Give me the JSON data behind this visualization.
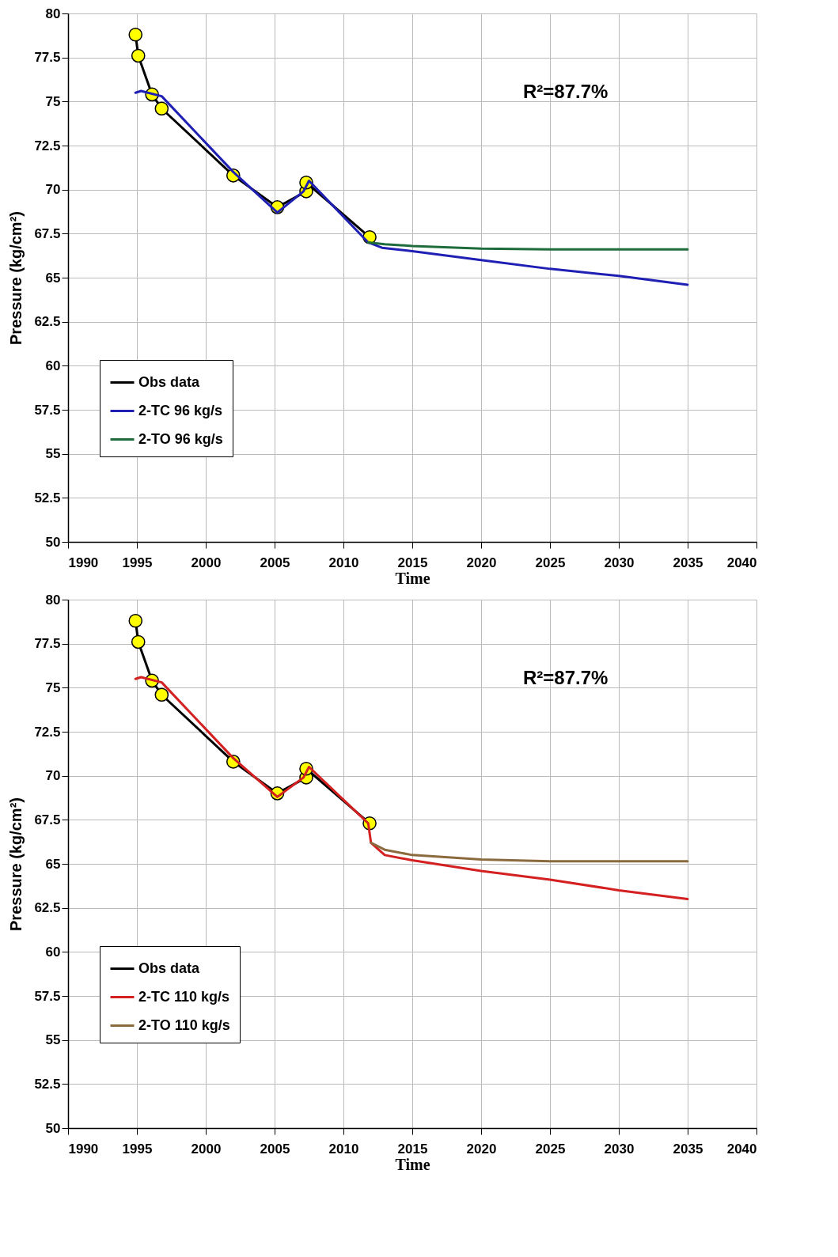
{
  "chart_data": [
    {
      "type": "line",
      "xlabel": "Time",
      "ylabel": "Pressure (kg/cm²)",
      "annotations": [
        "R²=87.7%"
      ],
      "xlim": [
        1990,
        2040
      ],
      "xticks": [
        1990,
        1995,
        2000,
        2005,
        2010,
        2015,
        2020,
        2025,
        2030,
        2035,
        2040
      ],
      "ylim": [
        50,
        80
      ],
      "yticks": [
        50,
        52.5,
        55,
        57.5,
        60,
        62.5,
        65,
        67.5,
        70,
        72.5,
        75,
        77.5,
        80
      ],
      "grid": true,
      "legend": "bottom left",
      "series": [
        {
          "name": "Obs data",
          "color": "#000000",
          "marker": "circle",
          "x": [
            1994.9,
            1995.1,
            1996.1,
            1996.8,
            2002.0,
            2005.2,
            2007.3,
            2007.3,
            2011.9
          ],
          "values": [
            78.8,
            77.6,
            75.4,
            74.6,
            70.8,
            69.0,
            69.9,
            70.4,
            67.3
          ]
        },
        {
          "name": "2-TC 96 kg/s",
          "color": "#1f1fb4",
          "x": [
            1994.9,
            1995.3,
            1996.8,
            2002.0,
            2005.2,
            2007.1,
            2007.5,
            2011.8,
            2012.8,
            2015,
            2020,
            2025,
            2030,
            2035
          ],
          "values": [
            75.5,
            75.6,
            75.3,
            71.0,
            68.7,
            69.9,
            70.5,
            67.0,
            66.7,
            66.5,
            66.0,
            65.5,
            65.1,
            64.6
          ]
        },
        {
          "name": "2-TO 96 kg/s",
          "color": "#1e6b3c",
          "x": [
            2011.8,
            2013,
            2015,
            2020,
            2025,
            2030,
            2035
          ],
          "values": [
            67.0,
            66.9,
            66.8,
            66.65,
            66.6,
            66.6,
            66.6
          ]
        }
      ]
    },
    {
      "type": "line",
      "xlabel": "Time",
      "ylabel": "Pressure (kg/cm²)",
      "annotations": [
        "R²=87.7%"
      ],
      "xlim": [
        1990,
        2040
      ],
      "xticks": [
        1990,
        1995,
        2000,
        2005,
        2010,
        2015,
        2020,
        2025,
        2030,
        2035,
        2040
      ],
      "ylim": [
        50,
        80
      ],
      "yticks": [
        50,
        52.5,
        55,
        57.5,
        60,
        62.5,
        65,
        67.5,
        70,
        72.5,
        75,
        77.5,
        80
      ],
      "grid": true,
      "legend": "bottom left",
      "series": [
        {
          "name": "Obs data",
          "color": "#000000",
          "marker": "circle",
          "x": [
            1994.9,
            1995.1,
            1996.1,
            1996.8,
            2002.0,
            2005.2,
            2007.3,
            2007.3,
            2011.9
          ],
          "values": [
            78.8,
            77.6,
            75.4,
            74.6,
            70.8,
            69.0,
            69.9,
            70.4,
            67.3
          ]
        },
        {
          "name": "2-TC 110 kg/s",
          "color": "#d42020",
          "x": [
            1994.9,
            1995.3,
            1996.8,
            2002.0,
            2005.2,
            2007.1,
            2007.5,
            2011.8,
            2012.0,
            2013.0,
            2015,
            2020,
            2025,
            2030,
            2035
          ],
          "values": [
            75.5,
            75.6,
            75.3,
            71.0,
            68.8,
            69.9,
            70.5,
            67.3,
            66.2,
            65.5,
            65.2,
            64.6,
            64.1,
            63.5,
            63.0
          ]
        },
        {
          "name": "2-TO 110 kg/s",
          "color": "#8b6a3e",
          "x": [
            2012.0,
            2013.0,
            2015,
            2020,
            2025,
            2030,
            2035
          ],
          "values": [
            66.2,
            65.8,
            65.5,
            65.25,
            65.15,
            65.15,
            65.15
          ]
        }
      ]
    }
  ]
}
